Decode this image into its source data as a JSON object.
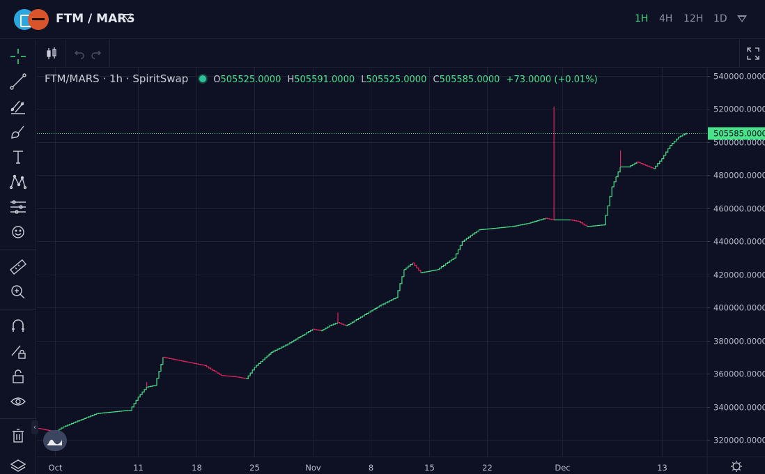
{
  "header": {
    "pair_title": "FTM / MARS",
    "intervals": [
      "1H",
      "4H",
      "12H",
      "1D"
    ],
    "active_interval": "1H",
    "logos": [
      "fantom-logo",
      "mars-logo"
    ]
  },
  "legend": {
    "symbol": "FTM/MARS · 1h · SpiritSwap",
    "open_label": "O",
    "open": "505525.0000",
    "high_label": "H",
    "high": "505591.0000",
    "low_label": "L",
    "low": "505525.0000",
    "close_label": "C",
    "close": "505585.0000",
    "change": "+73.0000 (+0.01%)"
  },
  "colors": {
    "background": "#0d1123",
    "up": "#4be08a",
    "down": "#e0245e",
    "grid": "#1c2133",
    "price_line": "#4be08a"
  },
  "left_toolbar_icons": [
    "crosshair-icon",
    "trend-line-icon",
    "fib-icon",
    "brush-icon",
    "text-icon",
    "pattern-icon",
    "forecast-icon",
    "emoji-icon",
    "ruler-icon",
    "zoom-in-icon",
    "magnet-icon",
    "lock-drawing-icon",
    "lock-icon",
    "eye-icon",
    "trash-icon",
    "layers-icon"
  ],
  "chart_data": {
    "type": "line",
    "series_kind": "candlestick",
    "x_tick_labels": [
      "Oct",
      "11",
      "18",
      "25",
      "Nov",
      "8",
      "15",
      "22",
      "Dec",
      "13"
    ],
    "y_tick_labels": [
      "540000.0000",
      "520000.0000",
      "500000.0000",
      "480000.0000",
      "460000.0000",
      "440000.0000",
      "420000.0000",
      "400000.0000",
      "380000.0000",
      "360000.0000",
      "340000.0000",
      "320000.0000"
    ],
    "ylim": [
      310000,
      545000
    ],
    "last_price_label": "505585.0000",
    "last_price": 505585,
    "grid": true,
    "points": [
      [
        "Sep 29",
        327000
      ],
      [
        "Oct 1",
        325000
      ],
      [
        "Oct 2",
        328000
      ],
      [
        "Oct 4",
        332000
      ],
      [
        "Oct 6",
        336000
      ],
      [
        "Oct 8",
        337000
      ],
      [
        "Oct 10",
        338000
      ],
      [
        "Oct 11",
        346000
      ],
      [
        "Oct 12",
        352000
      ],
      [
        "Oct 13",
        353000
      ],
      [
        "Oct 14",
        370000
      ],
      [
        "Oct 15",
        369000
      ],
      [
        "Oct 17",
        367000
      ],
      [
        "Oct 19",
        365000
      ],
      [
        "Oct 21",
        359000
      ],
      [
        "Oct 23",
        358000
      ],
      [
        "Oct 24",
        357000
      ],
      [
        "Oct 25",
        364000
      ],
      [
        "Oct 27",
        373000
      ],
      [
        "Oct 29",
        378000
      ],
      [
        "Oct 31",
        384000
      ],
      [
        "Nov 1",
        387000
      ],
      [
        "Nov 2",
        386000
      ],
      [
        "Nov 3",
        389000
      ],
      [
        "Nov 4",
        391000
      ],
      [
        "Nov 5",
        389000
      ],
      [
        "Nov 7",
        395000
      ],
      [
        "Nov 9",
        401000
      ],
      [
        "Nov 11",
        406000
      ],
      [
        "Nov 12",
        423000
      ],
      [
        "Nov 13",
        427000
      ],
      [
        "Nov 14",
        421000
      ],
      [
        "Nov 16",
        423000
      ],
      [
        "Nov 18",
        430000
      ],
      [
        "Nov 19",
        440000
      ],
      [
        "Nov 21",
        447000
      ],
      [
        "Nov 23",
        448000
      ],
      [
        "Nov 25",
        449000
      ],
      [
        "Nov 27",
        451000
      ],
      [
        "Nov 29",
        454000
      ],
      [
        "Nov 30",
        453000
      ],
      [
        "Dec 1",
        453000
      ],
      [
        "Dec 2",
        453000
      ],
      [
        "Dec 3",
        452000
      ],
      [
        "Dec 4",
        449000
      ],
      [
        "Dec 6",
        450000
      ],
      [
        "Dec 7",
        473000
      ],
      [
        "Dec 8",
        485000
      ],
      [
        "Dec 9",
        485000
      ],
      [
        "Dec 10",
        488000
      ],
      [
        "Dec 11",
        486000
      ],
      [
        "Dec 12",
        484000
      ],
      [
        "Dec 13",
        490000
      ],
      [
        "Dec 14",
        498000
      ],
      [
        "Dec 15",
        503000
      ],
      [
        "Dec 16",
        505585
      ]
    ],
    "spikes": [
      {
        "date": "Nov 30",
        "high": 521500
      },
      {
        "date": "Dec 8",
        "high": 495000
      },
      {
        "date": "Nov 4",
        "high": 397000
      },
      {
        "date": "Oct 12",
        "high": 355000
      }
    ]
  }
}
